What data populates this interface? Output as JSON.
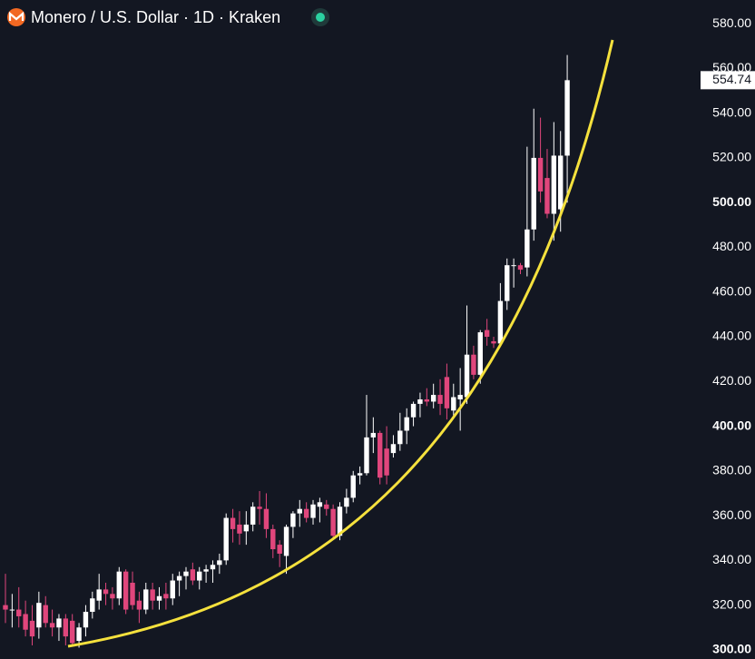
{
  "chart_data": {
    "type": "candlestick",
    "title": "Monero / U.S. Dollar · 1D · Kraken",
    "up_color": "#ffffff",
    "down_color": "#e0467c",
    "open": [
      320,
      318,
      318,
      316,
      313,
      310,
      320,
      312,
      310,
      314,
      313,
      304,
      310,
      317,
      322,
      327,
      325,
      323,
      335,
      330,
      322,
      318,
      327,
      322,
      325,
      323,
      331,
      333,
      336,
      331,
      335,
      336,
      338,
      340,
      359,
      356,
      353,
      356,
      364,
      363,
      354,
      347,
      342,
      355,
      361,
      363,
      359,
      364,
      365,
      363,
      351,
      364,
      368,
      378,
      379,
      395,
      397,
      390,
      388,
      392,
      398,
      404,
      410,
      412,
      411,
      414,
      422,
      407,
      412,
      413,
      432,
      423,
      443,
      438,
      437,
      456,
      472,
      472,
      471,
      488,
      520,
      511,
      495,
      497,
      521
    ],
    "high": [
      334,
      325,
      328,
      322,
      320,
      326,
      324,
      318,
      316,
      316,
      316,
      312,
      320,
      326,
      334,
      330,
      328,
      337,
      336,
      335,
      326,
      330,
      330,
      328,
      330,
      334,
      335,
      337,
      339,
      337,
      338,
      340,
      343,
      361,
      363,
      362,
      362,
      366,
      371,
      370,
      356,
      349,
      356,
      362,
      367,
      366,
      367,
      368,
      367,
      365,
      366,
      372,
      380,
      382,
      414,
      404,
      398,
      400,
      396,
      406,
      408,
      411,
      415,
      417,
      419,
      421,
      428,
      419,
      426,
      454,
      436,
      443,
      448,
      440,
      464,
      475,
      475,
      473,
      525,
      542,
      538,
      524,
      536,
      532,
      566
    ],
    "low": [
      312,
      310,
      310,
      306,
      302,
      305,
      310,
      306,
      304,
      302,
      302,
      301,
      306,
      314,
      318,
      320,
      318,
      320,
      316,
      318,
      312,
      316,
      318,
      318,
      318,
      320,
      324,
      327,
      329,
      327,
      330,
      330,
      334,
      338,
      348,
      347,
      347,
      353,
      356,
      350,
      341,
      337,
      334,
      350,
      355,
      357,
      356,
      357,
      360,
      350,
      349,
      361,
      366,
      374,
      378,
      388,
      374,
      374,
      386,
      389,
      392,
      400,
      404,
      409,
      408,
      405,
      403,
      404,
      398,
      410,
      421,
      419,
      436,
      435,
      436,
      452,
      462,
      468,
      467,
      483,
      500,
      493,
      483,
      487,
      500
    ],
    "close": [
      318,
      318,
      315,
      309,
      306,
      321,
      312,
      310,
      314,
      306,
      303,
      310,
      317,
      323,
      327,
      325,
      323,
      335,
      318,
      320,
      318,
      327,
      322,
      324,
      323,
      331,
      333,
      335,
      331,
      335,
      336,
      338,
      340,
      359,
      354,
      352,
      356,
      364,
      363,
      354,
      345,
      343,
      355,
      361,
      363,
      359,
      365,
      366,
      363,
      351,
      364,
      368,
      378,
      379,
      395,
      397,
      377,
      378,
      392,
      398,
      404,
      410,
      412,
      411,
      414,
      410,
      408,
      413,
      414,
      432,
      423,
      442,
      440,
      437,
      456,
      472,
      472,
      470,
      488,
      520,
      505,
      495,
      521,
      521,
      554.74
    ],
    "ylim": [
      295.9,
      590.6
    ],
    "yticks": [
      {
        "value": 300,
        "label": "300.00"
      },
      {
        "value": 320,
        "label": "320.00"
      },
      {
        "value": 340,
        "label": "340.00"
      },
      {
        "value": 360,
        "label": "360.00"
      },
      {
        "value": 380,
        "label": "380.00"
      },
      {
        "value": 400,
        "label": "400.00"
      },
      {
        "value": 420,
        "label": "420.00"
      },
      {
        "value": 440,
        "label": "440.00"
      },
      {
        "value": 460,
        "label": "460.00"
      },
      {
        "value": 480,
        "label": "480.00"
      },
      {
        "value": 500,
        "label": "500.00"
      },
      {
        "value": 520,
        "label": "520.00"
      },
      {
        "value": 540,
        "label": "540.00"
      },
      {
        "value": 560,
        "label": "560.00"
      },
      {
        "value": 580,
        "label": "580.00"
      }
    ]
  }
}
